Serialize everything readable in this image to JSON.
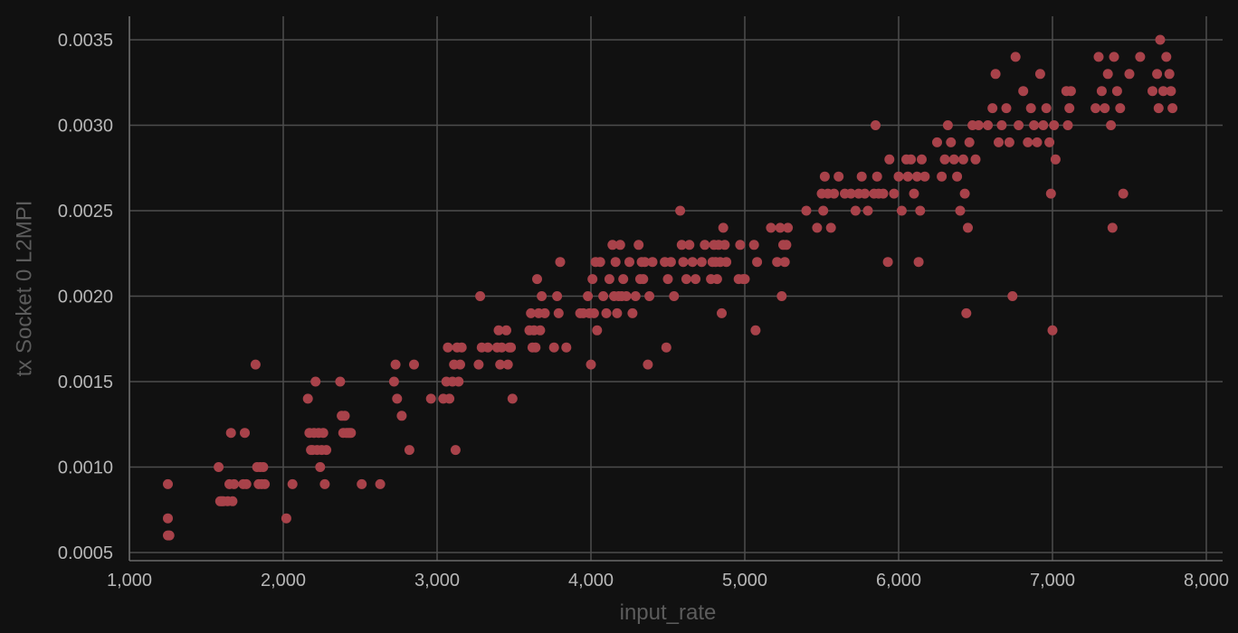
{
  "chart_data": {
    "type": "scatter",
    "xlabel": "input_rate",
    "ylabel": "tx Socket 0 L2MPI",
    "xlim": [
      1000,
      8000
    ],
    "ylim": [
      0.0005,
      0.0036
    ],
    "x_ticks": [
      1000,
      2000,
      3000,
      4000,
      5000,
      6000,
      7000,
      8000
    ],
    "x_tick_labels": [
      "1,000",
      "2,000",
      "3,000",
      "4,000",
      "5,000",
      "6,000",
      "7,000",
      "8,000"
    ],
    "y_ticks": [
      0.0005,
      0.001,
      0.0015,
      0.002,
      0.0025,
      0.003,
      0.0035
    ],
    "y_tick_labels": [
      "0.0005",
      "0.0010",
      "0.0015",
      "0.0020",
      "0.0025",
      "0.0030",
      "0.0035"
    ],
    "grid": true,
    "point_color": "#a8424a",
    "series": [
      {
        "x": [
          1250,
          1250,
          1250,
          1260,
          1580,
          1590,
          1600,
          1610,
          1640,
          1650,
          1660,
          1670,
          1680,
          1740,
          1750,
          1760,
          1820,
          1830,
          1840,
          1850,
          1860,
          1870,
          1880,
          2020,
          2060,
          2160,
          2170,
          2180,
          2190,
          2200,
          2210,
          2220,
          2230,
          2240,
          2250,
          2260,
          2270,
          2280,
          2370,
          2380,
          2390,
          2400,
          2410,
          2420,
          2430,
          2440,
          2510,
          2630,
          2720,
          2730,
          2740,
          2770,
          2820,
          2850,
          2960,
          3040,
          3060,
          3070,
          3080,
          3100,
          3110,
          3120,
          3130,
          3140,
          3150,
          3160,
          3270,
          3280,
          3290,
          3330,
          3390,
          3400,
          3410,
          3420,
          3450,
          3460,
          3470,
          3480,
          3490,
          3600,
          3610,
          3620,
          3630,
          3640,
          3650,
          3660,
          3670,
          3680,
          3700,
          3760,
          3780,
          3790,
          3800,
          3840,
          3930,
          3950,
          3980,
          3990,
          4000,
          4010,
          4020,
          4030,
          4040,
          4060,
          4080,
          4100,
          4120,
          4140,
          4150,
          4160,
          4170,
          4180,
          4190,
          4200,
          4210,
          4230,
          4250,
          4270,
          4290,
          4310,
          4320,
          4330,
          4340,
          4350,
          4370,
          4380,
          4400,
          4480,
          4490,
          4500,
          4520,
          4540,
          4580,
          4590,
          4600,
          4620,
          4640,
          4660,
          4680,
          4720,
          4740,
          4780,
          4790,
          4800,
          4810,
          4820,
          4830,
          4840,
          4850,
          4860,
          4870,
          4880,
          4960,
          4970,
          4990,
          5000,
          5060,
          5070,
          5080,
          5170,
          5210,
          5230,
          5240,
          5250,
          5260,
          5270,
          5280,
          5400,
          5470,
          5500,
          5510,
          5520,
          5540,
          5560,
          5580,
          5610,
          5650,
          5690,
          5720,
          5740,
          5760,
          5780,
          5800,
          5840,
          5850,
          5860,
          5870,
          5900,
          5930,
          5940,
          5970,
          6000,
          6020,
          6050,
          6060,
          6080,
          6100,
          6120,
          6130,
          6140,
          6150,
          6170,
          6250,
          6280,
          6300,
          6320,
          6340,
          6360,
          6380,
          6400,
          6420,
          6430,
          6440,
          6450,
          6460,
          6480,
          6500,
          6520,
          6580,
          6610,
          6630,
          6650,
          6670,
          6700,
          6720,
          6740,
          6760,
          6780,
          6810,
          6840,
          6860,
          6880,
          6900,
          6920,
          6940,
          6960,
          6980,
          6990,
          7000,
          7010,
          7020,
          7090,
          7100,
          7110,
          7120,
          7280,
          7300,
          7320,
          7340,
          7360,
          7380,
          7390,
          7400,
          7420,
          7440,
          7460,
          7500,
          7570,
          7650,
          7680,
          7690,
          7700,
          7720,
          7740,
          7760,
          7770,
          7780
        ],
        "y": [
          0.0009,
          0.0007,
          0.0006,
          0.0006,
          0.001,
          0.0008,
          0.0008,
          0.0008,
          0.0008,
          0.0009,
          0.0012,
          0.0008,
          0.0009,
          0.0009,
          0.0012,
          0.0009,
          0.0016,
          0.001,
          0.0009,
          0.001,
          0.0009,
          0.001,
          0.0009,
          0.0007,
          0.0009,
          0.0014,
          0.0012,
          0.0011,
          0.0011,
          0.0012,
          0.0015,
          0.0011,
          0.0012,
          0.001,
          0.0011,
          0.0012,
          0.0009,
          0.0011,
          0.0015,
          0.0013,
          0.0012,
          0.0013,
          0.0012,
          0.0012,
          0.0012,
          0.0012,
          0.0009,
          0.0009,
          0.0015,
          0.0016,
          0.0014,
          0.0013,
          0.0011,
          0.0016,
          0.0014,
          0.0014,
          0.0015,
          0.0017,
          0.0014,
          0.0015,
          0.0016,
          0.0011,
          0.0017,
          0.0015,
          0.0016,
          0.0017,
          0.0016,
          0.002,
          0.0017,
          0.0017,
          0.0017,
          0.0018,
          0.0016,
          0.0017,
          0.0018,
          0.0016,
          0.0017,
          0.0017,
          0.0014,
          0.0018,
          0.0019,
          0.0017,
          0.0018,
          0.0017,
          0.0021,
          0.0019,
          0.0018,
          0.002,
          0.0019,
          0.0017,
          0.002,
          0.0019,
          0.0022,
          0.0017,
          0.0019,
          0.0019,
          0.002,
          0.0019,
          0.0016,
          0.0021,
          0.0019,
          0.0022,
          0.0018,
          0.0022,
          0.002,
          0.0019,
          0.0021,
          0.0023,
          0.002,
          0.0022,
          0.0019,
          0.002,
          0.0023,
          0.002,
          0.0021,
          0.002,
          0.0022,
          0.0019,
          0.002,
          0.0023,
          0.0021,
          0.0022,
          0.0021,
          0.0022,
          0.0016,
          0.002,
          0.0022,
          0.0022,
          0.0017,
          0.0021,
          0.0022,
          0.002,
          0.0025,
          0.0023,
          0.0022,
          0.0021,
          0.0023,
          0.0022,
          0.0021,
          0.0022,
          0.0023,
          0.0021,
          0.0022,
          0.0023,
          0.0022,
          0.0021,
          0.0023,
          0.0022,
          0.0019,
          0.0024,
          0.0023,
          0.0022,
          0.0021,
          0.0023,
          0.0021,
          0.0021,
          0.0023,
          0.0018,
          0.0022,
          0.0024,
          0.0022,
          0.0024,
          0.002,
          0.0023,
          0.0022,
          0.0023,
          0.0024,
          0.0025,
          0.0024,
          0.0026,
          0.0025,
          0.0027,
          0.0026,
          0.0024,
          0.0026,
          0.0027,
          0.0026,
          0.0026,
          0.0025,
          0.0026,
          0.0027,
          0.0026,
          0.0025,
          0.0026,
          0.003,
          0.0027,
          0.0026,
          0.0026,
          0.0022,
          0.0028,
          0.0026,
          0.0027,
          0.0025,
          0.0028,
          0.0027,
          0.0028,
          0.0026,
          0.0027,
          0.0022,
          0.0025,
          0.0028,
          0.0027,
          0.0029,
          0.0027,
          0.0028,
          0.003,
          0.0029,
          0.0028,
          0.0027,
          0.0025,
          0.0028,
          0.0026,
          0.0019,
          0.0024,
          0.0029,
          0.003,
          0.0028,
          0.003,
          0.003,
          0.0031,
          0.0033,
          0.0029,
          0.003,
          0.0031,
          0.0029,
          0.002,
          0.0034,
          0.003,
          0.0032,
          0.0029,
          0.0031,
          0.003,
          0.0029,
          0.0033,
          0.003,
          0.0031,
          0.0029,
          0.0026,
          0.0018,
          0.003,
          0.0028,
          0.0032,
          0.003,
          0.0031,
          0.0032,
          0.0031,
          0.0034,
          0.0032,
          0.0031,
          0.0033,
          0.003,
          0.0024,
          0.0034,
          0.0032,
          0.0031,
          0.0026,
          0.0033,
          0.0034,
          0.0032,
          0.0033,
          0.0031,
          0.0035,
          0.0032,
          0.0034,
          0.0033,
          0.0032,
          0.0031
        ]
      }
    ]
  }
}
